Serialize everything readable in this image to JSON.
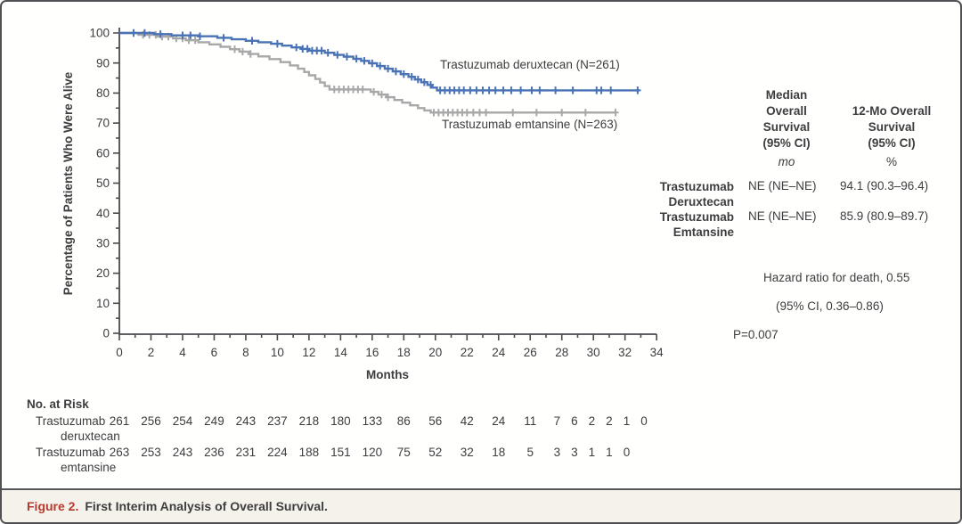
{
  "figure": {
    "caption_label": "Figure 2.",
    "caption_text": "First Interim Analysis of Overall Survival."
  },
  "chart_data": {
    "type": "line",
    "subtype": "kaplan-meier-step",
    "xlabel": "Months",
    "ylabel": "Percentage of Patients Who Were Alive",
    "xlim": [
      0,
      34
    ],
    "ylim": [
      0,
      100
    ],
    "x_major_tick_step": 2,
    "x_minor_tick_step": 1,
    "y_major_tick_step": 10,
    "y_minor_tick_step": 5,
    "grid": "off",
    "axis_color": "#4a4a4c",
    "series": [
      {
        "name": "Trastuzumab deruxtecan",
        "label": "Trastuzumab deruxtecan (N=261)",
        "n": 261,
        "color": "#4a73b5",
        "steps": [
          [
            0,
            100
          ],
          [
            2.2,
            99.6
          ],
          [
            3.3,
            99.2
          ],
          [
            5.0,
            98.9
          ],
          [
            6.2,
            98.4
          ],
          [
            7.1,
            97.9
          ],
          [
            8.0,
            97.4
          ],
          [
            8.8,
            96.9
          ],
          [
            9.6,
            96.4
          ],
          [
            10.3,
            95.8
          ],
          [
            10.9,
            95.2
          ],
          [
            11.5,
            94.7
          ],
          [
            12.0,
            94.1
          ],
          [
            13.0,
            93.4
          ],
          [
            13.6,
            92.7
          ],
          [
            14.2,
            92.1
          ],
          [
            14.8,
            91.4
          ],
          [
            15.3,
            90.7
          ],
          [
            15.8,
            89.9
          ],
          [
            16.3,
            89.0
          ],
          [
            16.8,
            88.1
          ],
          [
            17.3,
            87.2
          ],
          [
            17.8,
            86.3
          ],
          [
            18.3,
            85.4
          ],
          [
            18.7,
            84.5
          ],
          [
            19.1,
            83.6
          ],
          [
            19.5,
            82.7
          ],
          [
            19.8,
            81.8
          ],
          [
            20.1,
            80.9
          ],
          [
            32.9,
            80.9
          ]
        ],
        "censor_months": [
          0.9,
          1.6,
          2.6,
          4.0,
          4.5,
          5.1,
          6.6,
          8.4,
          10.0,
          11.2,
          11.6,
          11.9,
          12.2,
          12.5,
          12.8,
          13.2,
          13.8,
          14.4,
          15.0,
          15.5,
          16.0,
          16.5,
          17.0,
          17.5,
          18.0,
          18.5,
          18.9,
          19.3,
          19.7,
          20.3,
          20.6,
          20.9,
          21.2,
          21.5,
          21.8,
          22.2,
          22.6,
          23.0,
          23.4,
          23.8,
          24.3,
          24.8,
          25.4,
          26.1,
          26.6,
          27.6,
          28.7,
          30.2,
          30.5,
          31.1,
          32.8
        ]
      },
      {
        "name": "Trastuzumab emtansine",
        "label": "Trastuzumab emtansine (N=263)",
        "n": 263,
        "color": "#a8a8a8",
        "steps": [
          [
            0,
            100
          ],
          [
            1.2,
            99.4
          ],
          [
            2.4,
            98.8
          ],
          [
            3.4,
            98.2
          ],
          [
            4.2,
            97.6
          ],
          [
            5.0,
            96.9
          ],
          [
            5.7,
            96.2
          ],
          [
            6.4,
            95.4
          ],
          [
            7.0,
            94.6
          ],
          [
            7.6,
            93.8
          ],
          [
            8.2,
            93.0
          ],
          [
            8.8,
            92.2
          ],
          [
            9.5,
            91.3
          ],
          [
            10.2,
            90.3
          ],
          [
            10.8,
            89.2
          ],
          [
            11.3,
            88.1
          ],
          [
            11.7,
            87.0
          ],
          [
            12.0,
            85.9
          ],
          [
            12.4,
            84.7
          ],
          [
            12.7,
            83.5
          ],
          [
            13.0,
            82.3
          ],
          [
            13.3,
            81.2
          ],
          [
            15.9,
            80.4
          ],
          [
            16.4,
            79.5
          ],
          [
            16.9,
            78.6
          ],
          [
            17.4,
            77.7
          ],
          [
            17.9,
            76.8
          ],
          [
            18.4,
            75.9
          ],
          [
            18.9,
            75.0
          ],
          [
            19.3,
            74.2
          ],
          [
            19.7,
            73.5
          ],
          [
            31.4,
            73.5
          ]
        ],
        "censor_months": [
          1.5,
          1.9,
          2.3,
          2.7,
          3.1,
          3.6,
          4.0,
          4.4,
          4.8,
          7.3,
          7.8,
          8.3,
          13.6,
          13.9,
          14.2,
          14.5,
          14.8,
          15.1,
          15.4,
          16.1,
          16.6,
          17.0,
          19.9,
          20.2,
          20.5,
          20.8,
          21.1,
          21.4,
          21.7,
          22.0,
          22.4,
          22.8,
          23.2,
          24.9,
          26.4,
          28.0,
          29.5,
          31.4
        ]
      }
    ]
  },
  "stats_table": {
    "median_header": "Median\nOverall\nSurvival\n(95% CI)",
    "twelvemo_header": "12-Mo Overall\nSurvival\n(95% CI)",
    "median_unit": "mo",
    "twelvemo_unit": "%",
    "rows": [
      {
        "label": "Trastuzumab\nDeruxtecan",
        "median": "NE (NE–NE)",
        "twelve_mo": "94.1 (90.3–96.4)"
      },
      {
        "label": "Trastuzumab\nEmtansine",
        "median": "NE (NE–NE)",
        "twelve_mo": "85.9 (80.9–89.7)"
      }
    ],
    "hazard_line1": "Hazard ratio for death, 0.55",
    "hazard_line2": "(95% CI, 0.36–0.86)",
    "p_value": "P=0.007"
  },
  "risk_table": {
    "title": "No. at Risk",
    "rows": [
      {
        "label_line1": "Trastuzumab",
        "label_line2": "deruxtecan",
        "values": [
          261,
          256,
          254,
          249,
          243,
          237,
          218,
          180,
          133,
          86,
          56,
          42,
          24,
          11,
          7,
          6,
          2,
          2,
          1,
          0
        ],
        "positions": [
          0,
          2,
          4,
          6,
          8,
          10,
          12,
          14,
          16,
          18,
          20,
          22,
          24,
          26,
          27.7,
          28.8,
          29.9,
          31.0,
          32.1,
          33.2
        ]
      },
      {
        "label_line1": "Trastuzumab",
        "label_line2": "emtansine",
        "values": [
          263,
          253,
          243,
          236,
          231,
          224,
          188,
          151,
          120,
          75,
          52,
          32,
          18,
          5,
          3,
          3,
          1,
          1,
          0
        ],
        "positions": [
          0,
          2,
          4,
          6,
          8,
          10,
          12,
          14,
          16,
          18,
          20,
          22,
          24,
          26,
          27.7,
          28.8,
          29.9,
          31.0,
          32.1
        ]
      }
    ]
  }
}
